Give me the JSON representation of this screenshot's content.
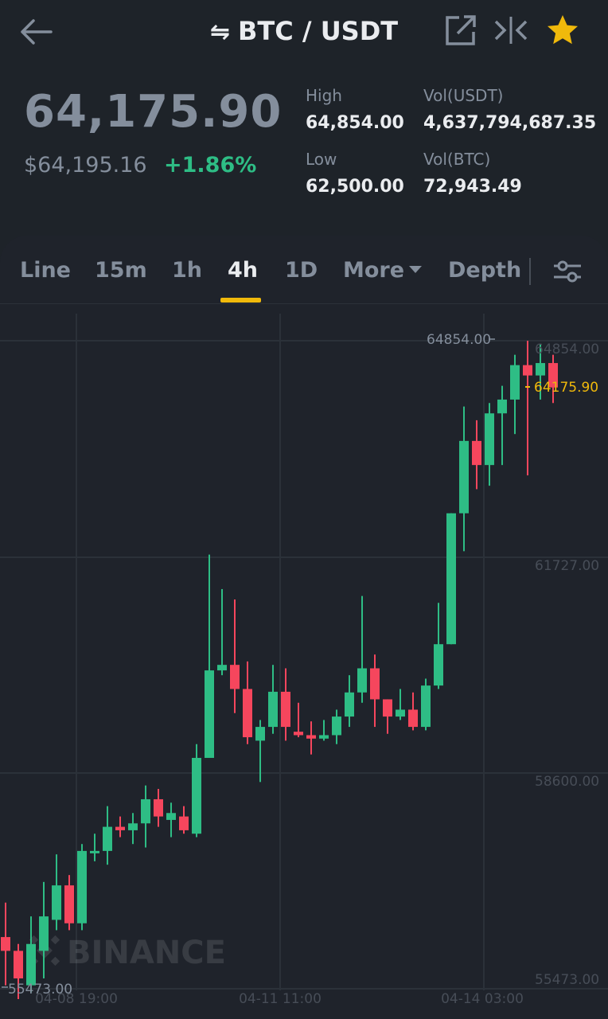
{
  "header": {
    "title": "BTC / USDT",
    "swap_glyph": "⇋",
    "icons": [
      "back-arrow-icon",
      "external-link-icon",
      "compare-icon",
      "star-icon"
    ],
    "star_color": "#f0b90b"
  },
  "ticker": {
    "last_price": "64,175.90",
    "usd_price": "$64,195.16",
    "change_percent": "+1.86%",
    "high_label": "High",
    "high_value": "64,854.00",
    "low_label": "Low",
    "low_value": "62,500.00",
    "vol_usdt_label": "Vol(USDT)",
    "vol_usdt_value": "4,637,794,687.35",
    "vol_btc_label": "Vol(BTC)",
    "vol_btc_value": "72,943.49"
  },
  "tabs": {
    "line": "Line",
    "m15": "15m",
    "h1": "1h",
    "h4": "4h",
    "d1": "1D",
    "more": "More",
    "depth": "Depth",
    "active": "4h"
  },
  "colors": {
    "up": "#2ebd85",
    "down": "#f6465d",
    "accent": "#f0b90b",
    "muted": "#848e9c"
  },
  "chart_data": {
    "type": "candlestick",
    "y_ticks": [
      "64854.00",
      "61727.00",
      "58600.00",
      "55473.00"
    ],
    "x_ticks": [
      "04-08 19:00",
      "04-11 11:00",
      "04-14 03:00"
    ],
    "high_marker": "64854.00",
    "low_marker": "55473.00",
    "last_price_label": "64175.90",
    "last_price": 64175.9,
    "ylim": [
      55473,
      64854
    ],
    "watermark": "BINANCE",
    "candles": [
      [
        56200,
        56000,
        55500,
        56700
      ],
      [
        56000,
        55600,
        55300,
        56100
      ],
      [
        55500,
        56100,
        55400,
        56500
      ],
      [
        56000,
        56500,
        55600,
        57000
      ],
      [
        56450,
        56950,
        56300,
        57400
      ],
      [
        56950,
        56400,
        56300,
        57100
      ],
      [
        56400,
        57450,
        56300,
        57550
      ],
      [
        57450,
        57450,
        57300,
        57700
      ],
      [
        57450,
        57800,
        57250,
        58100
      ],
      [
        57800,
        57750,
        57650,
        57950
      ],
      [
        57750,
        57850,
        57550,
        58000
      ],
      [
        57850,
        58200,
        57500,
        58400
      ],
      [
        58200,
        57950,
        57800,
        58350
      ],
      [
        57900,
        58000,
        57650,
        58150
      ],
      [
        57950,
        57750,
        57700,
        58100
      ],
      [
        57700,
        58800,
        57650,
        59000
      ],
      [
        58800,
        60070,
        58800,
        61750
      ],
      [
        60070,
        60150,
        60000,
        61250
      ],
      [
        60150,
        59800,
        59450,
        61100
      ],
      [
        59800,
        59100,
        59000,
        60200
      ],
      [
        59050,
        59250,
        58450,
        59350
      ],
      [
        59250,
        59760,
        59150,
        60150
      ],
      [
        59760,
        59250,
        59050,
        60100
      ],
      [
        59180,
        59130,
        59100,
        59600
      ],
      [
        59130,
        59080,
        58850,
        59330
      ],
      [
        59080,
        59130,
        59050,
        59350
      ],
      [
        59130,
        59400,
        59000,
        59500
      ],
      [
        59400,
        59750,
        59250,
        60000
      ],
      [
        59750,
        60100,
        59600,
        61150
      ],
      [
        60100,
        59650,
        59250,
        60300
      ],
      [
        59650,
        59400,
        59150,
        59650
      ],
      [
        59400,
        59500,
        59350,
        59800
      ],
      [
        59500,
        59250,
        59200,
        59750
      ],
      [
        59250,
        59850,
        59200,
        59950
      ],
      [
        59850,
        60450,
        59800,
        61050
      ],
      [
        60450,
        62350,
        60450,
        62350
      ],
      [
        62350,
        63400,
        61800,
        63900
      ],
      [
        63400,
        63050,
        62700,
        63700
      ],
      [
        63050,
        63800,
        62750,
        63950
      ],
      [
        63800,
        64000,
        63050,
        64200
      ],
      [
        64000,
        64500,
        63500,
        64650
      ],
      [
        64500,
        64350,
        62900,
        64854
      ],
      [
        64350,
        64530,
        64000,
        64800
      ],
      [
        64530,
        64175.9,
        63950,
        64650
      ]
    ]
  }
}
